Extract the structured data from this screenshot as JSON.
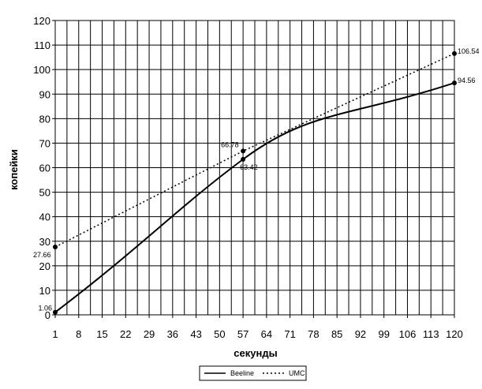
{
  "chart_data": {
    "type": "line",
    "title": "",
    "xlabel": "секунды",
    "ylabel": "копейки",
    "ylim": [
      0,
      120
    ],
    "ytick_step": 10,
    "categories": [
      "1",
      "8",
      "15",
      "22",
      "29",
      "36",
      "43",
      "50",
      "57",
      "64",
      "71",
      "78",
      "85",
      "92",
      "99",
      "106",
      "113",
      "120"
    ],
    "grid": true,
    "legend_position": "bottom",
    "series": [
      {
        "name": "Beeline",
        "style": "solid",
        "color": "#000000",
        "x": [
          1,
          57,
          120
        ],
        "y": [
          1.06,
          63.42,
          94.56
        ],
        "labels": [
          "1.06",
          "63.42",
          "94.56"
        ]
      },
      {
        "name": "UMC",
        "style": "dotted",
        "color": "#000000",
        "x": [
          1,
          57,
          120
        ],
        "y": [
          27.66,
          66.78,
          106.54
        ],
        "labels": [
          "27.66",
          "66.78",
          "106.54"
        ]
      }
    ]
  }
}
